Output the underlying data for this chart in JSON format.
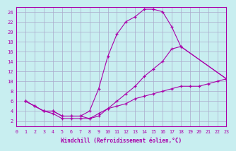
{
  "xlabel": "Windchill (Refroidissement éolien,°C)",
  "background_color": "#c8eef0",
  "grid_color": "#aaaacc",
  "line_color": "#aa00aa",
  "xlim": [
    0,
    23
  ],
  "ylim": [
    1,
    25
  ],
  "xticks": [
    0,
    1,
    2,
    3,
    4,
    5,
    6,
    7,
    8,
    9,
    10,
    11,
    12,
    13,
    14,
    15,
    16,
    17,
    18,
    19,
    20,
    21,
    22,
    23
  ],
  "yticks": [
    2,
    4,
    6,
    8,
    10,
    12,
    14,
    16,
    18,
    20,
    22,
    24
  ],
  "curve1_x": [
    1,
    2,
    3,
    4,
    5,
    6,
    7,
    8,
    9,
    10,
    11,
    12,
    13,
    14,
    15,
    16,
    17,
    18,
    23
  ],
  "curve1_y": [
    6,
    5,
    4,
    4,
    3,
    3,
    3,
    4,
    8.5,
    15,
    19.5,
    22,
    23,
    24.5,
    24.5,
    24,
    21,
    17,
    10.5
  ],
  "curve2_x": [
    1,
    2,
    3,
    4,
    5,
    6,
    7,
    8,
    9,
    10,
    11,
    12,
    13,
    14,
    15,
    16,
    17,
    18,
    23
  ],
  "curve2_y": [
    6,
    5,
    4,
    4,
    3,
    3,
    3,
    2.5,
    3,
    4.5,
    6,
    7.5,
    9,
    11,
    12.5,
    14,
    16.5,
    17,
    10.5
  ],
  "curve3_x": [
    1,
    2,
    3,
    4,
    5,
    6,
    7,
    8,
    9,
    10,
    11,
    12,
    13,
    14,
    15,
    16,
    17,
    18,
    19,
    20,
    21,
    22,
    23
  ],
  "curve3_y": [
    6,
    5,
    4,
    3.5,
    2.5,
    2.5,
    2.5,
    2.5,
    3.5,
    4.5,
    5,
    5.5,
    6.5,
    7,
    7.5,
    8,
    8.5,
    9,
    9,
    9,
    9.5,
    10,
    10.5
  ]
}
